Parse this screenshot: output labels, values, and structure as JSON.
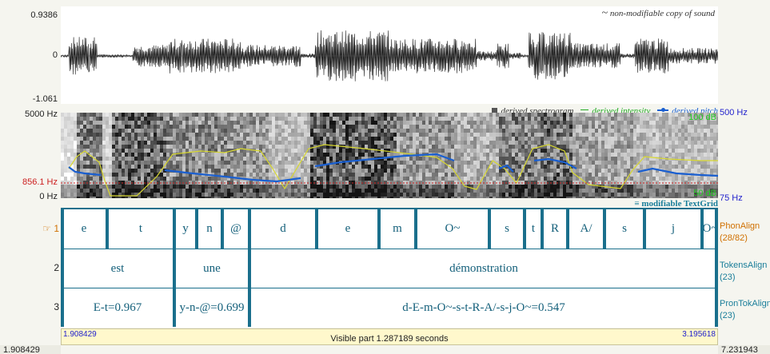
{
  "waveform": {
    "max_label": "0.9386",
    "zero_label": "0",
    "min_label": "-1.061",
    "note_symbol": "~",
    "note": "non-modifiable copy of sound"
  },
  "spectrogram": {
    "top_label": "5000 Hz",
    "cursor_label": "856.1 Hz",
    "bottom_label": "0 Hz",
    "pitch_top_label": "500 Hz",
    "pitch_bottom_label": "75 Hz",
    "intensity_top": "100 dB",
    "intensity_bottom": "50 dB",
    "legend": {
      "spectrogram": "derived spectrogram",
      "intensity": "derived intensity",
      "pitch": "derived pitch"
    },
    "colors": {
      "pitch": "#1a5fd0",
      "intensity": "#d8d830",
      "cursor": "#cc2020",
      "db": "#22cc22",
      "hz": "#2222cc"
    },
    "textgrid_label": "modifiable TextGrid"
  },
  "textgrid": {
    "tiers": [
      {
        "number": "1",
        "name": "PhonAlign",
        "count": "(28/82)",
        "color": "#d07000",
        "selected": true,
        "intervals": [
          "e",
          "t",
          "y",
          "n",
          "@",
          "d",
          "e",
          "m",
          "O~",
          "s",
          "t",
          "R",
          "A/",
          "s",
          "j",
          "O~"
        ]
      },
      {
        "number": "2",
        "name": "TokensAlign",
        "count": "(23)",
        "color": "#1a7e9a",
        "intervals": [
          "est",
          "une",
          "démonstration"
        ]
      },
      {
        "number": "3",
        "name": "PronTokAlign",
        "count": "(23)",
        "color": "#1a7e9a",
        "intervals": [
          "E-t=0.967",
          "y-n-@=0.699",
          "d-E-m-O~-s-t-R-A/-s-j-O~=0.547"
        ]
      }
    ]
  },
  "time_bar": {
    "left_edge": "1.908429",
    "visible_start": "1.908429",
    "visible_label": "Visible part 1.287189 seconds",
    "visible_end": "3.195618",
    "right_edge": "7.231943"
  }
}
